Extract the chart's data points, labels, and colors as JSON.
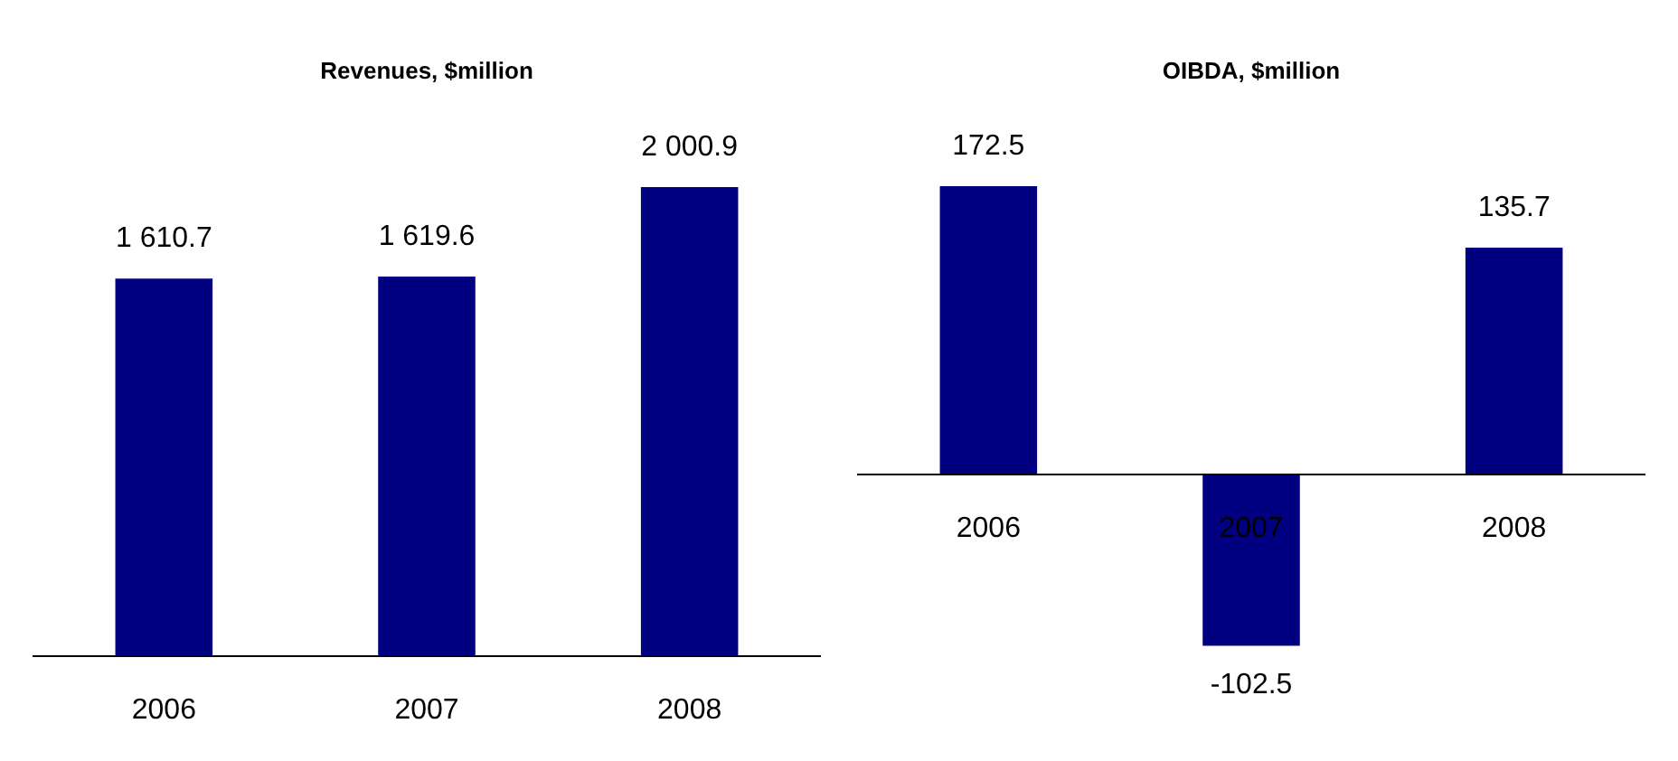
{
  "chart_data": [
    {
      "type": "bar",
      "title": "Revenues, $million",
      "categories": [
        "2006",
        "2007",
        "2008"
      ],
      "values": [
        1610.7,
        1619.6,
        2000.9
      ],
      "value_labels": [
        "1 610.7",
        "1 619.6",
        "2 000.9"
      ],
      "color": "#000080"
    },
    {
      "type": "bar",
      "title": "OIBDA, $million",
      "categories": [
        "2006",
        "2007",
        "2008"
      ],
      "values": [
        172.5,
        -102.5,
        135.7
      ],
      "value_labels": [
        "172.5",
        "-102.5",
        "135.7"
      ],
      "color": "#000080"
    }
  ]
}
